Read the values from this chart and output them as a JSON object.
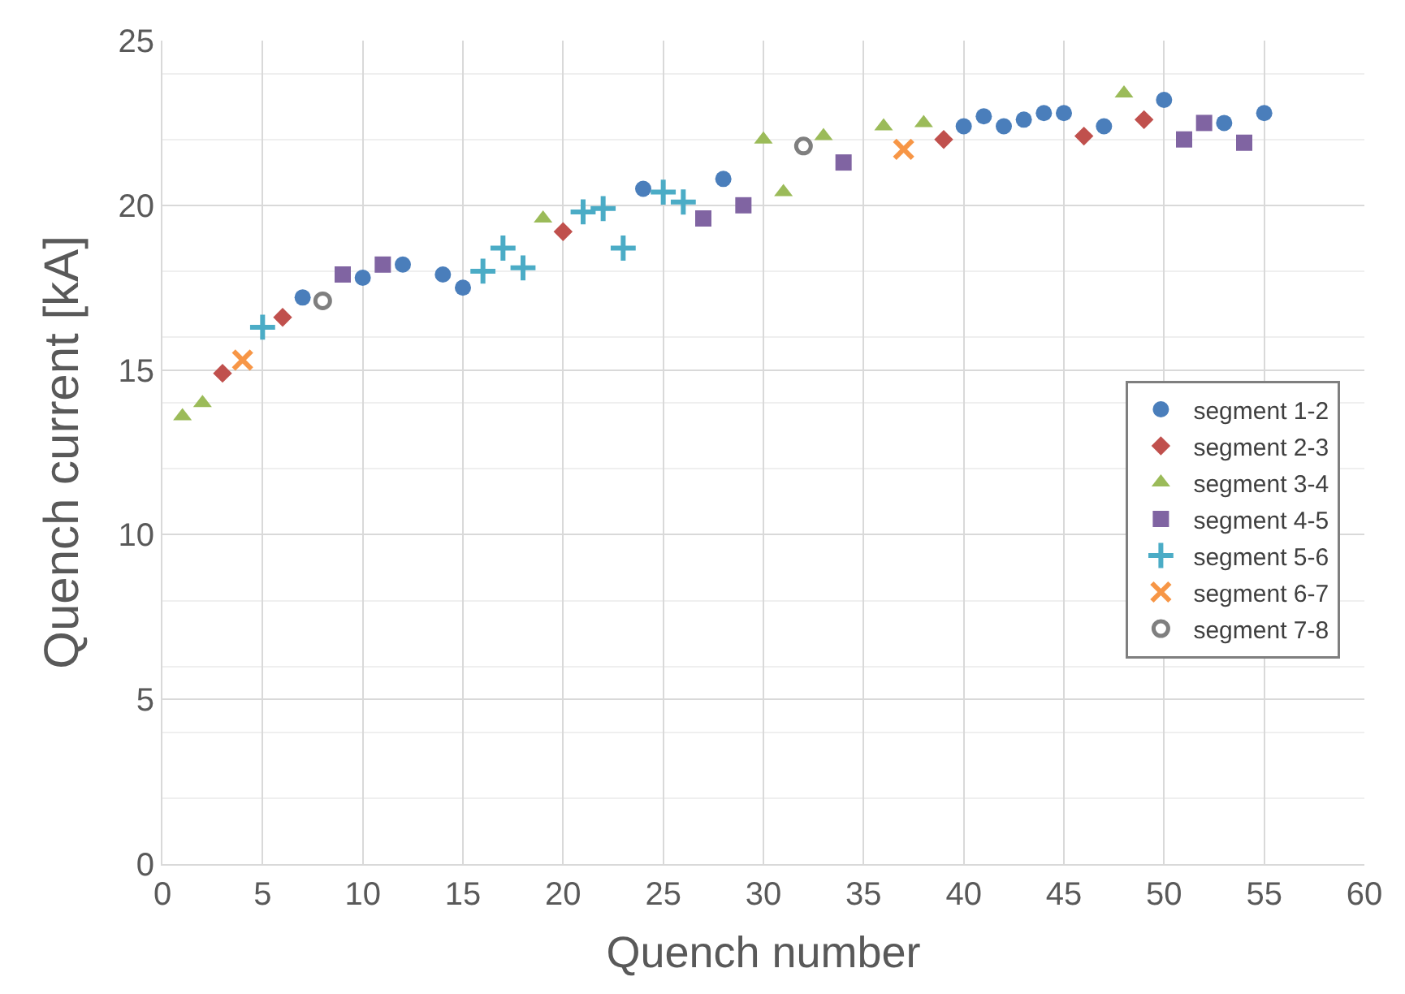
{
  "chart_data": {
    "type": "scatter",
    "xlabel": "Quench number",
    "ylabel": "Quench current [kA]",
    "xlim": [
      0,
      60
    ],
    "xticks": [
      0,
      5,
      10,
      15,
      20,
      25,
      30,
      35,
      40,
      45,
      50,
      55,
      60
    ],
    "ylim": [
      0,
      25
    ],
    "yticks": [
      0,
      5,
      10,
      15,
      20,
      25
    ],
    "grid": true,
    "legend": "right",
    "series": [
      {
        "name": "segment 1-2",
        "color": "#4a7ebb",
        "marker": "circle",
        "x": [
          7,
          10,
          12,
          14,
          15,
          24,
          28,
          40,
          41,
          42,
          43,
          44,
          45,
          47,
          50,
          53,
          55
        ],
        "values": [
          17.2,
          17.8,
          18.2,
          17.9,
          17.5,
          20.5,
          20.8,
          22.4,
          22.7,
          22.4,
          22.6,
          22.8,
          22.8,
          22.4,
          23.2,
          22.5,
          22.8
        ]
      },
      {
        "name": "segment 2-3",
        "color": "#c0504d",
        "marker": "diamond",
        "x": [
          3,
          6,
          20,
          39,
          46,
          49
        ],
        "values": [
          14.9,
          16.6,
          19.2,
          22.0,
          22.1,
          22.6
        ]
      },
      {
        "name": "segment 3-4",
        "color": "#9bbb59",
        "marker": "triangle",
        "x": [
          1,
          2,
          19,
          30,
          31,
          33,
          36,
          38,
          48
        ],
        "values": [
          13.6,
          14.0,
          19.6,
          22.0,
          20.4,
          22.1,
          22.4,
          22.5,
          23.4
        ]
      },
      {
        "name": "segment 4-5",
        "color": "#8064a2",
        "marker": "square",
        "x": [
          9,
          11,
          27,
          29,
          34,
          51,
          52,
          54
        ],
        "values": [
          17.9,
          18.2,
          19.6,
          20.0,
          21.3,
          22.0,
          22.5,
          21.9
        ]
      },
      {
        "name": "segment 5-6",
        "color": "#4bacc6",
        "marker": "cross",
        "x": [
          5,
          16,
          17,
          18,
          21,
          22,
          23,
          25,
          26
        ],
        "values": [
          16.3,
          18.0,
          18.7,
          18.1,
          19.8,
          19.9,
          18.7,
          20.4,
          20.1
        ]
      },
      {
        "name": "segment 6-7",
        "color": "#f79646",
        "marker": "x",
        "x": [
          4,
          37
        ],
        "values": [
          15.3,
          21.7
        ]
      },
      {
        "name": "segment 7-8",
        "color": "#7f7f7f",
        "marker": "circle-open",
        "x": [
          8,
          32
        ],
        "values": [
          17.1,
          21.8
        ]
      }
    ]
  }
}
